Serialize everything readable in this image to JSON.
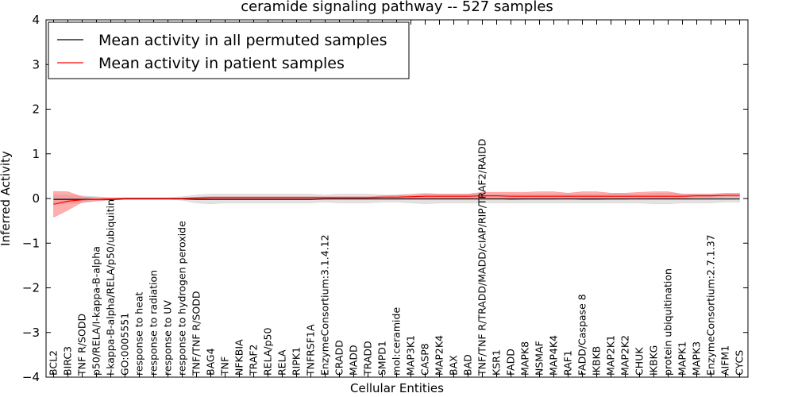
{
  "chart_data": {
    "type": "line",
    "title": "ceramide signaling pathway -- 527 samples",
    "xlabel": "Cellular Entities",
    "ylabel": "Inferred Activity",
    "ylim": [
      -4,
      4
    ],
    "yticks": [
      -4,
      -3,
      -2,
      -1,
      0,
      1,
      2,
      3,
      4
    ],
    "ytick_labels": [
      "−4",
      "−3",
      "−2",
      "−1",
      "0",
      "1",
      "2",
      "3",
      "4"
    ],
    "legend": {
      "location": "top-left",
      "entries": [
        {
          "label": "Mean activity in all permuted samples",
          "color": "#000000"
        },
        {
          "label": "Mean activity in patient samples",
          "color": "#ff0000"
        }
      ]
    },
    "categories": [
      "BCL2",
      "BIRC3",
      "TNF R/SODD",
      "p50/RELA/I-kappa-B-alpha",
      "I-kappa-B-alpha/RELA/p50/ubiquitin",
      "GO:0005551",
      "response to heat",
      "response to radiation",
      "response to UV",
      "response to hydrogen peroxide",
      "TNF/TNF R/SODD",
      "BAG4",
      "TNF",
      "NFKBIA",
      "TRAF2",
      "RELA/p50",
      "RELA",
      "RIPK1",
      "TNFRSF1A",
      "EnzymeConsortium:3.1.4.12",
      "CRADD",
      "MADD",
      "TRADD",
      "SMPD1",
      "mol:ceramide",
      "MAP3K1",
      "CASP8",
      "MAP2K4",
      "BAX",
      "BAD",
      "TNF/TNF R/TRADD/MADD/cIAP/RIP/TRAF2/RAIDD",
      "KSR1",
      "FADD",
      "MAPK8",
      "NSMAF",
      "MAP4K4",
      "RAF1",
      "FADD/Caspase 8",
      "IKBKB",
      "MAP2K1",
      "MAP2K2",
      "CHUK",
      "IKBKG",
      "protein ubiquitination",
      "MAPK1",
      "MAPK3",
      "EnzymeConsortium:2.7.1.37",
      "AIFM1",
      "CYCS"
    ],
    "series": [
      {
        "name": "Mean activity in all permuted samples",
        "color": "#000000",
        "values": [
          -0.02,
          -0.02,
          -0.02,
          -0.02,
          -0.02,
          -0.01,
          -0.01,
          -0.01,
          -0.01,
          -0.01,
          -0.02,
          -0.02,
          -0.02,
          -0.02,
          -0.02,
          -0.02,
          -0.02,
          -0.02,
          -0.02,
          -0.01,
          -0.01,
          -0.01,
          -0.01,
          -0.01,
          -0.01,
          -0.01,
          -0.01,
          -0.01,
          -0.01,
          -0.01,
          -0.01,
          -0.01,
          -0.01,
          -0.01,
          -0.01,
          -0.01,
          -0.01,
          -0.01,
          -0.01,
          -0.01,
          -0.01,
          -0.01,
          -0.01,
          -0.01,
          -0.01,
          -0.01,
          -0.01,
          -0.01,
          -0.01
        ],
        "band_lower": [
          -0.12,
          -0.12,
          -0.1,
          -0.06,
          -0.04,
          -0.02,
          -0.02,
          -0.02,
          -0.02,
          -0.04,
          -0.1,
          -0.12,
          -0.1,
          -0.1,
          -0.1,
          -0.1,
          -0.1,
          -0.1,
          -0.1,
          -0.08,
          -0.1,
          -0.1,
          -0.1,
          -0.08,
          -0.08,
          -0.1,
          -0.12,
          -0.1,
          -0.1,
          -0.1,
          -0.1,
          -0.1,
          -0.1,
          -0.1,
          -0.1,
          -0.1,
          -0.1,
          -0.1,
          -0.1,
          -0.1,
          -0.1,
          -0.1,
          -0.12,
          -0.12,
          -0.1,
          -0.1,
          -0.1,
          -0.08,
          -0.08
        ],
        "band_upper": [
          0.08,
          0.08,
          0.06,
          0.04,
          0.02,
          0.02,
          0.02,
          0.02,
          0.02,
          0.04,
          0.08,
          0.1,
          0.1,
          0.1,
          0.1,
          0.1,
          0.1,
          0.1,
          0.1,
          0.08,
          0.1,
          0.1,
          0.1,
          0.08,
          0.08,
          0.1,
          0.12,
          0.1,
          0.1,
          0.1,
          0.1,
          0.1,
          0.1,
          0.1,
          0.1,
          0.1,
          0.1,
          0.1,
          0.1,
          0.1,
          0.1,
          0.1,
          0.12,
          0.12,
          0.1,
          0.1,
          0.1,
          0.08,
          0.08
        ]
      },
      {
        "name": "Mean activity in patient samples",
        "color": "#ff0000",
        "values": [
          -0.13,
          -0.06,
          -0.03,
          -0.02,
          -0.01,
          0.0,
          0.0,
          0.0,
          0.0,
          0.0,
          0.01,
          0.02,
          0.02,
          0.02,
          0.02,
          0.02,
          0.02,
          0.02,
          0.02,
          0.02,
          0.02,
          0.02,
          0.02,
          0.03,
          0.03,
          0.04,
          0.05,
          0.05,
          0.05,
          0.05,
          0.06,
          0.06,
          0.05,
          0.05,
          0.05,
          0.05,
          0.05,
          0.05,
          0.05,
          0.05,
          0.05,
          0.05,
          0.05,
          0.05,
          0.05,
          0.06,
          0.06,
          0.07,
          0.07
        ],
        "band_lower": [
          -0.42,
          -0.26,
          -0.08,
          -0.05,
          -0.03,
          -0.01,
          -0.01,
          -0.01,
          -0.01,
          -0.01,
          -0.01,
          0.0,
          0.0,
          0.0,
          0.0,
          0.0,
          0.0,
          0.0,
          0.0,
          0.0,
          0.0,
          0.0,
          0.0,
          0.0,
          0.0,
          0.0,
          0.0,
          0.0,
          0.0,
          0.0,
          0.0,
          0.0,
          -0.03,
          -0.02,
          -0.02,
          -0.02,
          0.0,
          -0.03,
          -0.03,
          -0.02,
          -0.02,
          0.0,
          0.0,
          0.0,
          0.01,
          0.02,
          0.02,
          0.03,
          0.03
        ],
        "band_upper": [
          0.16,
          0.15,
          0.04,
          0.02,
          0.01,
          0.01,
          0.01,
          0.01,
          0.01,
          0.01,
          0.03,
          0.04,
          0.04,
          0.04,
          0.04,
          0.04,
          0.04,
          0.04,
          0.04,
          0.04,
          0.04,
          0.04,
          0.04,
          0.06,
          0.07,
          0.08,
          0.1,
          0.1,
          0.1,
          0.1,
          0.14,
          0.14,
          0.14,
          0.14,
          0.15,
          0.15,
          0.12,
          0.15,
          0.15,
          0.12,
          0.12,
          0.14,
          0.15,
          0.15,
          0.1,
          0.1,
          0.1,
          0.12,
          0.12
        ]
      }
    ],
    "band_colors": {
      "permuted": "#bfbfbf",
      "patient": "#ff6b6b"
    }
  }
}
